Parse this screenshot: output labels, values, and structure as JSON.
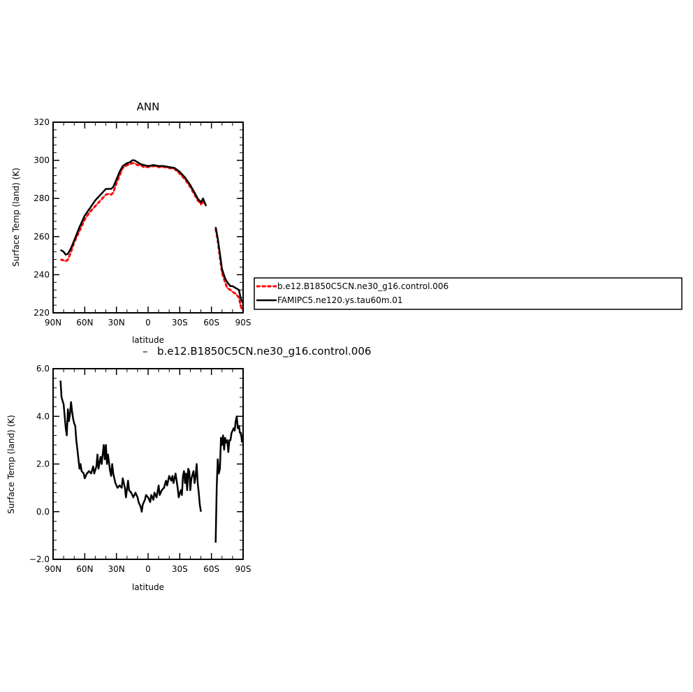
{
  "chart_data": [
    {
      "type": "line",
      "title": "ANN",
      "xlabel": "latitude",
      "ylabel": "Surface Temp (land) (K)",
      "xlim": [
        90,
        -90
      ],
      "ylim": [
        220,
        320
      ],
      "xticks": [
        90,
        60,
        30,
        0,
        -30,
        -60,
        -90
      ],
      "xtick_labels": [
        "90N",
        "60N",
        "30N",
        "0",
        "30S",
        "60S",
        "90S"
      ],
      "yticks": [
        220,
        240,
        260,
        280,
        300,
        320
      ],
      "ytick_labels": [
        "220",
        "240",
        "260",
        "280",
        "300",
        "320"
      ],
      "legend_position": "right",
      "series": [
        {
          "name": "b.e12.B1850C5CN.ne30_g16.control.006",
          "color": "#ff0000",
          "style": "dashed",
          "segments": [
            [
              [
                83,
                248
              ],
              [
                80,
                247.5
              ],
              [
                78,
                247
              ],
              [
                76,
                248
              ],
              [
                73,
                252
              ],
              [
                70,
                257
              ],
              [
                65,
                263
              ],
              [
                60,
                269
              ],
              [
                55,
                273
              ],
              [
                50,
                276
              ],
              [
                45,
                279
              ],
              [
                40,
                282
              ],
              [
                37,
                282.5
              ],
              [
                35,
                282
              ],
              [
                33,
                283
              ],
              [
                30,
                288
              ],
              [
                27,
                292
              ],
              [
                24,
                296
              ],
              [
                20,
                297.5
              ],
              [
                17,
                298
              ],
              [
                15,
                298.5
              ],
              [
                13,
                298.5
              ],
              [
                10,
                297.5
              ],
              [
                7,
                297.5
              ],
              [
                4,
                296.5
              ],
              [
                0,
                296.5
              ],
              [
                -5,
                297
              ],
              [
                -10,
                296.5
              ],
              [
                -15,
                296.5
              ],
              [
                -20,
                296
              ],
              [
                -25,
                295.5
              ],
              [
                -30,
                293
              ],
              [
                -35,
                290
              ],
              [
                -40,
                286
              ],
              [
                -44,
                282
              ],
              [
                -47,
                279
              ],
              [
                -50,
                277
              ],
              [
                -52,
                278
              ],
              [
                -54,
                277
              ]
            ],
            [
              [
                -64,
                264
              ],
              [
                -66,
                258
              ],
              [
                -68,
                249
              ],
              [
                -70,
                241
              ],
              [
                -73,
                236
              ],
              [
                -75,
                233
              ],
              [
                -78,
                232
              ],
              [
                -80,
                231
              ],
              [
                -83,
                230
              ],
              [
                -86,
                228
              ],
              [
                -88,
                223
              ],
              [
                -90,
                221
              ]
            ]
          ]
        },
        {
          "name": "FAMIPC5.ne120.ys.tau60m.01",
          "color": "#000000",
          "style": "solid",
          "segments": [
            [
              [
                83,
                253
              ],
              [
                80,
                252
              ],
              [
                78,
                250.5
              ],
              [
                76,
                251
              ],
              [
                73,
                254
              ],
              [
                70,
                258
              ],
              [
                65,
                265
              ],
              [
                60,
                271
              ],
              [
                55,
                275
              ],
              [
                50,
                279
              ],
              [
                45,
                282
              ],
              [
                40,
                285
              ],
              [
                37,
                285
              ],
              [
                35,
                285
              ],
              [
                33,
                286
              ],
              [
                30,
                290
              ],
              [
                27,
                294
              ],
              [
                24,
                297
              ],
              [
                20,
                298.5
              ],
              [
                17,
                299
              ],
              [
                15,
                300
              ],
              [
                13,
                300
              ],
              [
                10,
                299
              ],
              [
                7,
                298
              ],
              [
                4,
                297.5
              ],
              [
                0,
                297
              ],
              [
                -5,
                297.5
              ],
              [
                -10,
                297
              ],
              [
                -15,
                297
              ],
              [
                -20,
                296.5
              ],
              [
                -25,
                296
              ],
              [
                -30,
                294
              ],
              [
                -35,
                291
              ],
              [
                -40,
                287
              ],
              [
                -44,
                283
              ],
              [
                -47,
                280
              ],
              [
                -50,
                278
              ],
              [
                -52,
                280
              ],
              [
                -55,
                276
              ]
            ],
            [
              [
                -64,
                265
              ],
              [
                -66,
                259
              ],
              [
                -68,
                251
              ],
              [
                -70,
                243
              ],
              [
                -73,
                238
              ],
              [
                -75,
                236
              ],
              [
                -78,
                234
              ],
              [
                -80,
                234
              ],
              [
                -83,
                233
              ],
              [
                -86,
                232
              ],
              [
                -88,
                227
              ],
              [
                -90,
                225
              ]
            ]
          ]
        }
      ]
    },
    {
      "type": "line",
      "title": "b.e12.B1850C5CN.ne30_g16.control.006",
      "title_prefix": "–",
      "xlabel": "latitude",
      "ylabel": "Surface Temp (land) (K)",
      "xlim": [
        90,
        -90
      ],
      "ylim": [
        -2,
        6
      ],
      "xticks": [
        90,
        60,
        30,
        0,
        -30,
        -60,
        -90
      ],
      "xtick_labels": [
        "90N",
        "60N",
        "30N",
        "0",
        "30S",
        "60S",
        "90S"
      ],
      "yticks": [
        -2,
        0,
        2,
        4,
        6
      ],
      "ytick_labels": [
        "−2.0",
        "0.0",
        "2.0",
        "4.0",
        "6.0"
      ],
      "series": [
        {
          "color": "#000000",
          "style": "solid",
          "segments": [
            [
              [
                83,
                5.5
              ],
              [
                82,
                4.8
              ],
              [
                80,
                4.5
              ],
              [
                79,
                4.0
              ],
              [
                78,
                3.5
              ],
              [
                77,
                3.2
              ],
              [
                76,
                4.3
              ],
              [
                75,
                3.8
              ],
              [
                74,
                4.1
              ],
              [
                73,
                4.6
              ],
              [
                72,
                4.2
              ],
              [
                71,
                3.9
              ],
              [
                70,
                3.7
              ],
              [
                69,
                3.6
              ],
              [
                68,
                3.0
              ],
              [
                67,
                2.6
              ],
              [
                66,
                2.2
              ],
              [
                65,
                1.8
              ],
              [
                64,
                2.0
              ],
              [
                63,
                1.7
              ],
              [
                61,
                1.6
              ],
              [
                60,
                1.4
              ],
              [
                58,
                1.6
              ],
              [
                56,
                1.7
              ],
              [
                54,
                1.6
              ],
              [
                52,
                1.9
              ],
              [
                51,
                1.6
              ],
              [
                49,
                1.9
              ],
              [
                48,
                2.4
              ],
              [
                47,
                1.8
              ],
              [
                45,
                2.3
              ],
              [
                44,
                2.0
              ],
              [
                42,
                2.8
              ],
              [
                41,
                2.2
              ],
              [
                40,
                2.8
              ],
              [
                39,
                2.0
              ],
              [
                38,
                2.4
              ],
              [
                36,
                1.7
              ],
              [
                35,
                1.5
              ],
              [
                34,
                2.0
              ],
              [
                33,
                1.6
              ],
              [
                31,
                1.2
              ],
              [
                29,
                1.0
              ],
              [
                27,
                1.1
              ],
              [
                25,
                1.0
              ],
              [
                24,
                1.4
              ],
              [
                22,
                1.0
              ],
              [
                21,
                0.6
              ],
              [
                19,
                1.3
              ],
              [
                18,
                0.9
              ],
              [
                16,
                0.8
              ],
              [
                14,
                0.6
              ],
              [
                12,
                0.8
              ],
              [
                10,
                0.6
              ],
              [
                9,
                0.4
              ],
              [
                7,
                0.2
              ],
              [
                6,
                0.0
              ],
              [
                5,
                0.3
              ],
              [
                3,
                0.5
              ],
              [
                2,
                0.7
              ],
              [
                0,
                0.6
              ],
              [
                -2,
                0.4
              ],
              [
                -3,
                0.7
              ],
              [
                -5,
                0.5
              ],
              [
                -6,
                0.8
              ],
              [
                -8,
                0.6
              ],
              [
                -10,
                1.1
              ],
              [
                -11,
                0.7
              ],
              [
                -13,
                0.9
              ],
              [
                -15,
                1.0
              ],
              [
                -17,
                1.3
              ],
              [
                -18,
                1.1
              ],
              [
                -20,
                1.5
              ],
              [
                -22,
                1.3
              ],
              [
                -23,
                1.5
              ],
              [
                -24,
                1.2
              ],
              [
                -26,
                1.6
              ],
              [
                -28,
                1.0
              ],
              [
                -29,
                0.6
              ],
              [
                -31,
                0.9
              ],
              [
                -32,
                0.7
              ],
              [
                -33,
                1.5
              ],
              [
                -34,
                1.7
              ],
              [
                -35,
                1.2
              ],
              [
                -36,
                1.6
              ],
              [
                -37,
                0.9
              ],
              [
                -38,
                1.8
              ],
              [
                -39,
                1.7
              ],
              [
                -40,
                0.9
              ],
              [
                -41,
                1.4
              ],
              [
                -43,
                1.7
              ],
              [
                -44,
                1.2
              ],
              [
                -45,
                1.5
              ],
              [
                -46,
                2.0
              ],
              [
                -47,
                1.2
              ],
              [
                -48,
                0.8
              ],
              [
                -49,
                0.3
              ],
              [
                -50,
                0.0
              ]
            ],
            [
              [
                -64,
                -1.3
              ],
              [
                -65,
                1.0
              ],
              [
                -66,
                2.2
              ],
              [
                -67,
                1.6
              ],
              [
                -68,
                1.8
              ],
              [
                -69,
                3.1
              ],
              [
                -70,
                2.8
              ],
              [
                -71,
                3.2
              ],
              [
                -72,
                2.6
              ],
              [
                -73,
                3.1
              ],
              [
                -74,
                2.9
              ],
              [
                -75,
                3.0
              ],
              [
                -76,
                2.5
              ],
              [
                -77,
                3.0
              ],
              [
                -78,
                3.0
              ],
              [
                -79,
                3.3
              ],
              [
                -80,
                3.4
              ],
              [
                -81,
                3.5
              ],
              [
                -82,
                3.4
              ],
              [
                -83,
                3.8
              ],
              [
                -84,
                4.0
              ],
              [
                -85,
                3.5
              ],
              [
                -86,
                3.6
              ],
              [
                -87,
                3.3
              ],
              [
                -88,
                3.3
              ],
              [
                -89,
                2.9
              ]
            ]
          ]
        }
      ]
    }
  ]
}
